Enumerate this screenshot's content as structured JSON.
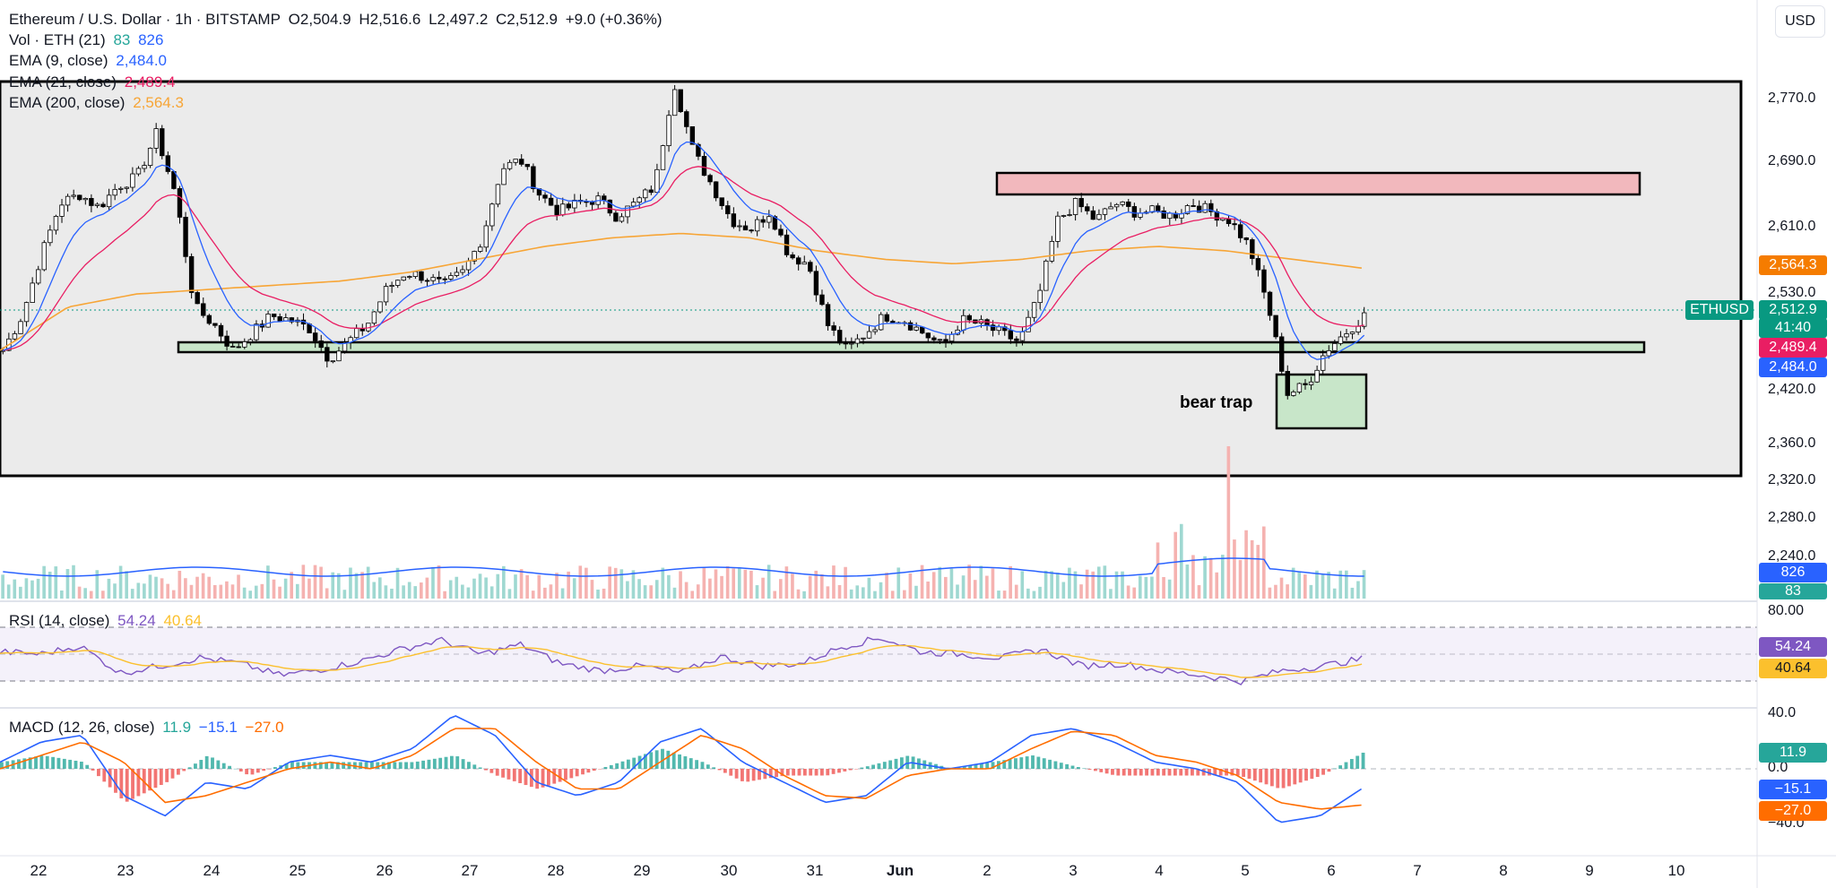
{
  "legend": {
    "symbol": "Ethereum / U.S. Dollar · 1h · BITSTAMP",
    "open": "O2,504.9",
    "high": "H2,516.6",
    "low": "L2,497.2",
    "close": "C2,512.9",
    "change": "+9.0 (+0.36%)",
    "vol_label": "Vol · ETH (21)",
    "vol_v1": "83",
    "vol_v2": "826",
    "ema9_label": "EMA (9, close)",
    "ema9_value": "2,484.0",
    "ema21_label": "EMA (21, close)",
    "ema21_value": "2,489.4",
    "ema200_label": "EMA (200, close)",
    "ema200_value": "2,564.3",
    "rsi_label": "RSI (14, close)",
    "rsi_value": "54.24",
    "rsi_ma_value": "40.64",
    "macd_label": "MACD (12, 26, close)",
    "macd_hist": "11.9",
    "macd_line": "−15.1",
    "macd_signal": "−27.0"
  },
  "currency_button": "USD",
  "price_axis": [
    "2,770.0",
    "2,690.0",
    "2,610.0",
    "2,530.0",
    "2,420.0",
    "2,360.0",
    "2,320.0",
    "2,280.0",
    "2,240.0"
  ],
  "rsi_axis": [
    "80.00"
  ],
  "macd_axis": [
    "40.0",
    "0.0",
    "−40.0"
  ],
  "tags": {
    "ethusd_label": "ETHUSD",
    "last_price": "2,512.9",
    "countdown": "41:40",
    "ema200": "2,564.3",
    "ema21": "2,489.4",
    "ema9": "2,484.0",
    "vol_ma": "826",
    "vol": "83",
    "rsi": "54.24",
    "rsi_ma": "40.64",
    "macd_hist": "11.9",
    "macd_line": "−15.1",
    "macd_signal": "−27.0"
  },
  "date_axis": [
    "22",
    "23",
    "24",
    "25",
    "26",
    "27",
    "28",
    "29",
    "30",
    "31",
    "Jun",
    "2",
    "3",
    "4",
    "5",
    "6",
    "7",
    "8",
    "9",
    "10"
  ],
  "annotation": "bear trap",
  "colors": {
    "up": "#26a69a",
    "down": "#ef5350",
    "ema9": "#2962ff",
    "ema21": "#e91e63",
    "ema200": "#f7a536",
    "rsi": "#7e57c2",
    "rsi_ma": "#fbc02d",
    "macd": "#2962ff",
    "signal": "#ff6d00",
    "ethusd_tag": "#089981"
  },
  "chart_data": {
    "type": "candlestick",
    "timeframe": "1h",
    "price_range": [
      2320,
      2790
    ],
    "close_series": [
      2470,
      2510,
      2580,
      2640,
      2650,
      2635,
      2660,
      2670,
      2720,
      2650,
      2520,
      2500,
      2470,
      2490,
      2510,
      2505,
      2495,
      2460,
      2480,
      2500,
      2540,
      2560,
      2555,
      2545,
      2560,
      2600,
      2680,
      2690,
      2650,
      2630,
      2640,
      2645,
      2625,
      2640,
      2660,
      2780,
      2700,
      2660,
      2620,
      2610,
      2630,
      2580,
      2570,
      2500,
      2470,
      2490,
      2510,
      2505,
      2490,
      2475,
      2505,
      2500,
      2490,
      2480,
      2530,
      2620,
      2640,
      2620,
      2640,
      2630,
      2630,
      2625,
      2640,
      2630,
      2620,
      2590,
      2520,
      2420,
      2430,
      2470,
      2490,
      2510
    ],
    "ema200": [
      2470,
      2520,
      2535,
      2540,
      2545,
      2550,
      2560,
      2575,
      2590,
      2600,
      2605,
      2600,
      2585,
      2575,
      2570,
      2575,
      2585,
      2590,
      2585,
      2575,
      2565
    ],
    "rsi": [
      60,
      58,
      65,
      42,
      48,
      55,
      50,
      40,
      45,
      52,
      62,
      70,
      58,
      66,
      50,
      44,
      48,
      42,
      56,
      48,
      50,
      64,
      72,
      60,
      58,
      55,
      62,
      48,
      50,
      44,
      40,
      35,
      44,
      48,
      54
    ],
    "macd_line": [
      5,
      20,
      25,
      -20,
      -35,
      -10,
      -15,
      5,
      10,
      5,
      15,
      40,
      25,
      -10,
      -20,
      -10,
      20,
      30,
      5,
      -10,
      -25,
      -20,
      5,
      0,
      5,
      25,
      30,
      20,
      5,
      0,
      -10,
      -40,
      -35,
      -15
    ],
    "macd_signal": [
      0,
      10,
      20,
      5,
      -25,
      -20,
      -10,
      0,
      5,
      0,
      10,
      30,
      30,
      5,
      -15,
      -15,
      5,
      25,
      15,
      -5,
      -20,
      -22,
      -5,
      0,
      0,
      15,
      28,
      25,
      10,
      5,
      -5,
      -25,
      -30,
      -27
    ]
  }
}
